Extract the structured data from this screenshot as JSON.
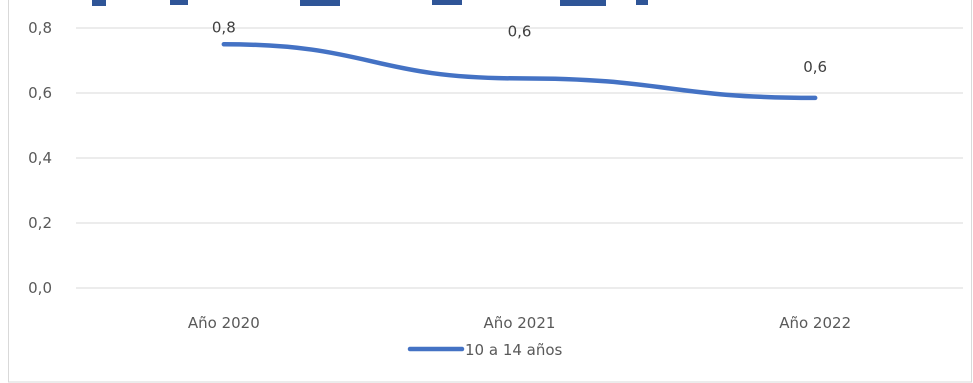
{
  "chart_data": {
    "type": "line",
    "categories": [
      "Año 2020",
      "Año 2021",
      "Año 2022"
    ],
    "series": [
      {
        "name": "10 a 14 años",
        "values": [
          0.75,
          0.645,
          0.585
        ],
        "data_labels": [
          "0,8",
          "0,6",
          "0,6"
        ],
        "color": "#4472c4"
      }
    ],
    "y_ticks": [
      "0,0",
      "0,2",
      "0,4",
      "0,6",
      "0,8"
    ],
    "ylim": [
      0,
      0.8
    ],
    "grid": true,
    "legend_position": "bottom",
    "title": ""
  }
}
